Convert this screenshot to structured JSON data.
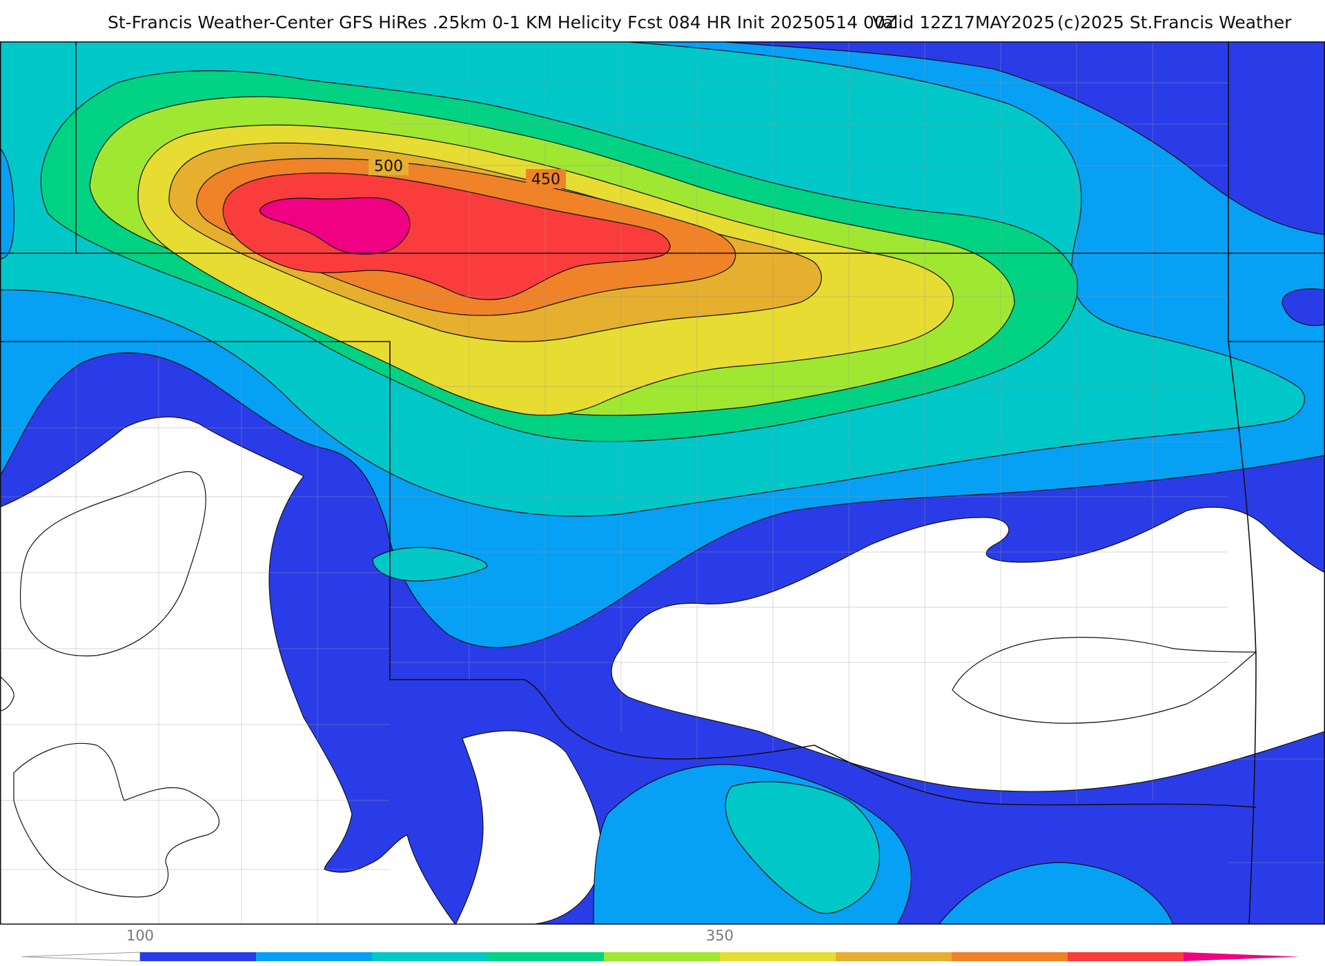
{
  "title": {
    "main": "St-Francis Weather-Center GFS HiRes .25km 0-1 KM Helicity Fcst 084 HR Init 20250514 00Z",
    "valid": "Valid 12Z17MAY2025",
    "copyright": "(c)2025 St.Francis Weather"
  },
  "contour_labels": {
    "c500": "500",
    "c450": "450"
  },
  "colorbar": {
    "ticks": [
      "100",
      "350"
    ],
    "colors": [
      "#2a3ce8",
      "#06a0f5",
      "#00c8c8",
      "#00d283",
      "#a0e732",
      "#e6dc32",
      "#e6af2d",
      "#f08228",
      "#fa3c3c",
      "#f00082"
    ]
  },
  "palette": {
    "below": "#ffffff",
    "c100": "#2a3ce8",
    "c125": "#06a0f5",
    "c150": "#00c8c8",
    "c200": "#00d283",
    "c250": "#a0e732",
    "c300": "#e6dc32",
    "c350": "#e6af2d",
    "c400": "#f08228",
    "c450": "#fa3c3c",
    "c500": "#f00082"
  }
}
